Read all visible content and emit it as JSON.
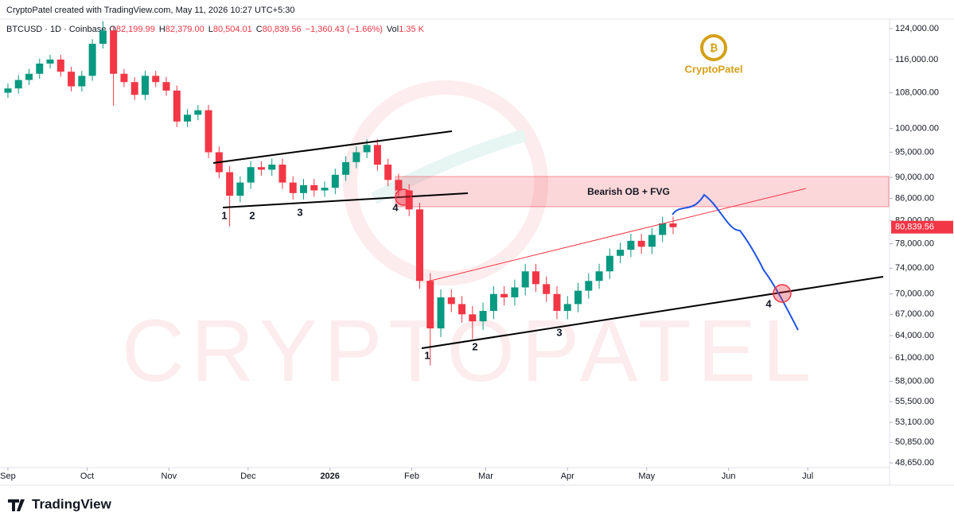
{
  "header": {
    "credit": "CryptoPatel created with TradingView.com, May 11, 2026 10:27 UTC+5:30",
    "symbol": "BTCUSD · 1D · Coinbase",
    "ohlc": [
      {
        "key": "O",
        "text": "82,199.99"
      },
      {
        "key": "H",
        "text": "82,379.00"
      },
      {
        "key": "L",
        "text": "80,504.01"
      },
      {
        "key": "C",
        "text": "80,839.56"
      },
      {
        "key": "",
        "text": "−1,360.43 (−1.66%)"
      },
      {
        "key": "Vol",
        "text": "1.35 K"
      }
    ]
  },
  "logo": "CryptoPatel",
  "watermark": "CRYPTOPATEL",
  "footer": "TradingView",
  "annotations": {
    "zone": "Bearish OB + FVG",
    "labels": [
      "1",
      "2",
      "3",
      "4",
      "1",
      "2",
      "3",
      "4"
    ]
  },
  "chart_data": {
    "type": "candlestick",
    "log_scale": true,
    "up_color": "#089981",
    "down_color": "#f23645",
    "x": [
      "2025-09-01",
      "2025-09-05",
      "2025-09-09",
      "2025-09-13",
      "2025-09-17",
      "2025-09-21",
      "2025-09-25",
      "2025-09-29",
      "2025-10-03",
      "2025-10-07",
      "2025-10-11",
      "2025-10-15",
      "2025-10-19",
      "2025-10-23",
      "2025-10-27",
      "2025-10-31",
      "2025-11-04",
      "2025-11-08",
      "2025-11-12",
      "2025-11-16",
      "2025-11-20",
      "2025-11-24",
      "2025-11-28",
      "2025-12-02",
      "2025-12-06",
      "2025-12-10",
      "2025-12-14",
      "2025-12-18",
      "2025-12-22",
      "2025-12-26",
      "2025-12-30",
      "2026-01-03",
      "2026-01-07",
      "2026-01-11",
      "2026-01-15",
      "2026-01-19",
      "2026-01-23",
      "2026-01-27",
      "2026-01-31",
      "2026-02-04",
      "2026-02-08",
      "2026-02-12",
      "2026-02-16",
      "2026-02-20",
      "2026-02-24",
      "2026-02-28",
      "2026-03-04",
      "2026-03-08",
      "2026-03-12",
      "2026-03-16",
      "2026-03-20",
      "2026-03-24",
      "2026-03-28",
      "2026-04-01",
      "2026-04-05",
      "2026-04-09",
      "2026-04-13",
      "2026-04-17",
      "2026-04-21",
      "2026-04-25",
      "2026-04-29",
      "2026-05-03",
      "2026-05-07",
      "2026-05-11"
    ],
    "open": [
      108000,
      109000,
      111000,
      112500,
      115000,
      116000,
      113000,
      109500,
      112000,
      120000,
      123500,
      112500,
      110500,
      107500,
      112000,
      110500,
      108500,
      101500,
      103000,
      104000,
      95000,
      91000,
      86500,
      89000,
      92000,
      91500,
      92500,
      89000,
      87000,
      88500,
      87500,
      88000,
      90500,
      93000,
      95000,
      96500,
      92500,
      89500,
      87500,
      84000,
      72000,
      65000,
      69500,
      68500,
      67000,
      66000,
      67500,
      70000,
      69500,
      71000,
      73500,
      71500,
      70000,
      67500,
      68500,
      70500,
      72000,
      73500,
      76000,
      77000,
      78500,
      77500,
      79500,
      81500
    ],
    "high": [
      110200,
      112200,
      113700,
      116200,
      117200,
      117200,
      114200,
      113200,
      121200,
      126000,
      124700,
      113700,
      111700,
      113200,
      113200,
      111700,
      109700,
      104200,
      105200,
      105200,
      96200,
      92200,
      90200,
      93200,
      93200,
      93700,
      93700,
      90200,
      89700,
      89700,
      89200,
      91700,
      94200,
      96200,
      97700,
      97700,
      93700,
      90700,
      88700,
      85200,
      73200,
      70700,
      70700,
      69700,
      68200,
      68700,
      71200,
      71200,
      72200,
      74700,
      74700,
      72700,
      71200,
      69700,
      71700,
      73200,
      74700,
      77200,
      78200,
      79700,
      79700,
      80700,
      82700,
      82700
    ],
    "low": [
      106800,
      107800,
      109800,
      111300,
      113800,
      111800,
      108300,
      108300,
      110800,
      118800,
      105000,
      109300,
      106300,
      106300,
      109300,
      107300,
      100300,
      100300,
      101800,
      93800,
      89800,
      81000,
      85300,
      87800,
      90300,
      90300,
      87800,
      85800,
      85800,
      86300,
      86300,
      86800,
      89300,
      91800,
      93800,
      91300,
      88300,
      86300,
      82800,
      70800,
      60000,
      63800,
      67300,
      65800,
      63500,
      64800,
      66300,
      68300,
      68300,
      69800,
      70300,
      68800,
      66300,
      66300,
      67300,
      69300,
      70800,
      72300,
      74800,
      75800,
      76300,
      76300,
      78300,
      79640
    ],
    "close": [
      109000,
      111000,
      112500,
      115000,
      116000,
      113000,
      109500,
      112000,
      120000,
      123500,
      112500,
      110500,
      107500,
      112000,
      110500,
      108500,
      101500,
      103000,
      104000,
      95000,
      91000,
      86500,
      89000,
      92000,
      91500,
      92500,
      89000,
      87000,
      88500,
      87500,
      88000,
      90500,
      93000,
      95000,
      96500,
      92500,
      89500,
      87500,
      84000,
      72000,
      65000,
      69500,
      68500,
      67000,
      66000,
      67500,
      70000,
      69500,
      71000,
      73500,
      71500,
      70000,
      67500,
      68500,
      70500,
      72000,
      73500,
      76000,
      77000,
      78500,
      77500,
      79500,
      81500,
      80840
    ],
    "last_price": 80839.56,
    "last_price_label": "80,839.56",
    "xlim": [
      "2025-08-29",
      "2026-08-01"
    ],
    "xticks": [
      {
        "value": "2025-09-01",
        "label": "Sep"
      },
      {
        "value": "2025-10-01",
        "label": "Oct"
      },
      {
        "value": "2025-11-01",
        "label": "Nov"
      },
      {
        "value": "2025-12-01",
        "label": "Dec"
      },
      {
        "value": "2026-01-01",
        "label": "2026"
      },
      {
        "value": "2026-02-01",
        "label": "Feb"
      },
      {
        "value": "2026-03-01",
        "label": "Mar"
      },
      {
        "value": "2026-04-01",
        "label": "Apr"
      },
      {
        "value": "2026-05-01",
        "label": "May"
      },
      {
        "value": "2026-06-01",
        "label": "Jun"
      },
      {
        "value": "2026-07-01",
        "label": "Jul"
      }
    ],
    "ylim": [
      48000,
      127000
    ],
    "yticks": [
      {
        "value": 124000,
        "label": "124,000.00"
      },
      {
        "value": 116000,
        "label": "116,000.00"
      },
      {
        "value": 108000,
        "label": "108,000.00"
      },
      {
        "value": 100000,
        "label": "100,000.00"
      },
      {
        "value": 95000,
        "label": "95,000.00"
      },
      {
        "value": 90000,
        "label": "90,000.00"
      },
      {
        "value": 86000,
        "label": "86,000.00"
      },
      {
        "value": 82000,
        "label": "82,000.00"
      },
      {
        "value": 78000,
        "label": "78,000.00"
      },
      {
        "value": 74000,
        "label": "74,000.00"
      },
      {
        "value": 70000,
        "label": "70,000.00"
      },
      {
        "value": 67000,
        "label": "67,000.00"
      },
      {
        "value": 64000,
        "label": "64,000.00"
      },
      {
        "value": 61000,
        "label": "61,000.00"
      },
      {
        "value": 58000,
        "label": "58,000.00"
      },
      {
        "value": 55500,
        "label": "55,500.00"
      },
      {
        "value": 53100,
        "label": "53,100.00"
      },
      {
        "value": 50850,
        "label": "50,850.00"
      },
      {
        "value": 48650,
        "label": "48,650.00"
      }
    ]
  }
}
